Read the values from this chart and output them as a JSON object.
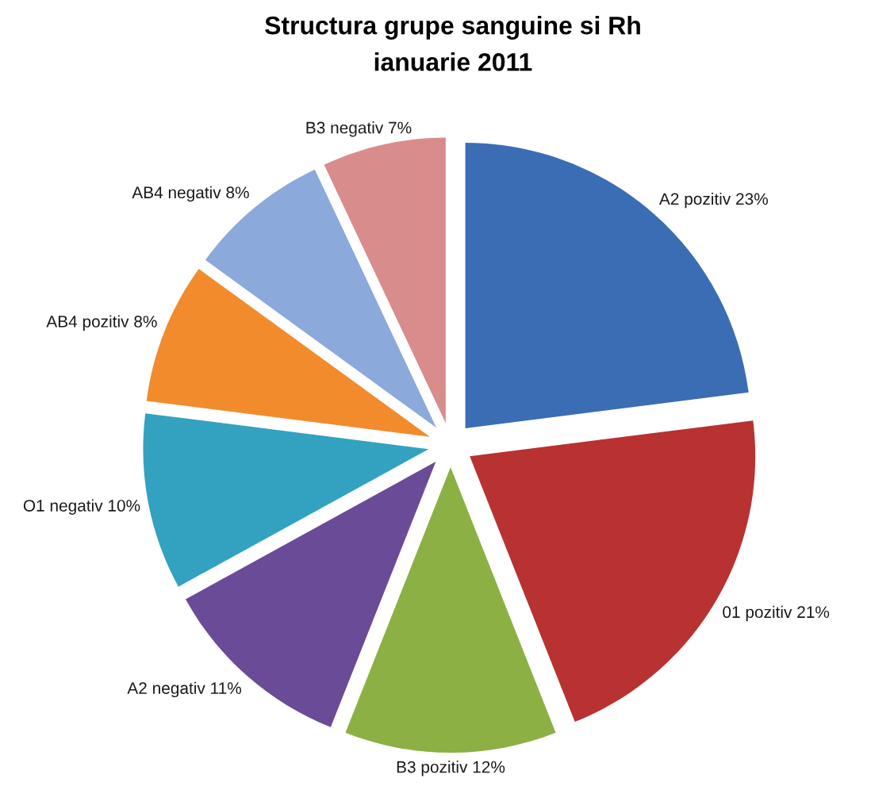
{
  "chart_data": {
    "type": "pie",
    "title": "Structura grupe sanguine si Rh\nianuarie 2011",
    "categories": [
      "A2 pozitiv",
      "01 pozitiv",
      "B3 pozitiv",
      "A2 negativ",
      "O1 negativ",
      "AB4 pozitiv",
      "AB4 negativ",
      "B3 negativ"
    ],
    "values": [
      23,
      21,
      12,
      11,
      10,
      8,
      8,
      7
    ],
    "value_labels": [
      "23%",
      "21%",
      "12%",
      "11%",
      "10%",
      "8%",
      "8%",
      "7%"
    ],
    "colors": [
      "#3b6db5",
      "#b83232",
      "#8cb043",
      "#6a4b98",
      "#33a2c0",
      "#f28b2c",
      "#8ca9db",
      "#d98c8c"
    ]
  }
}
